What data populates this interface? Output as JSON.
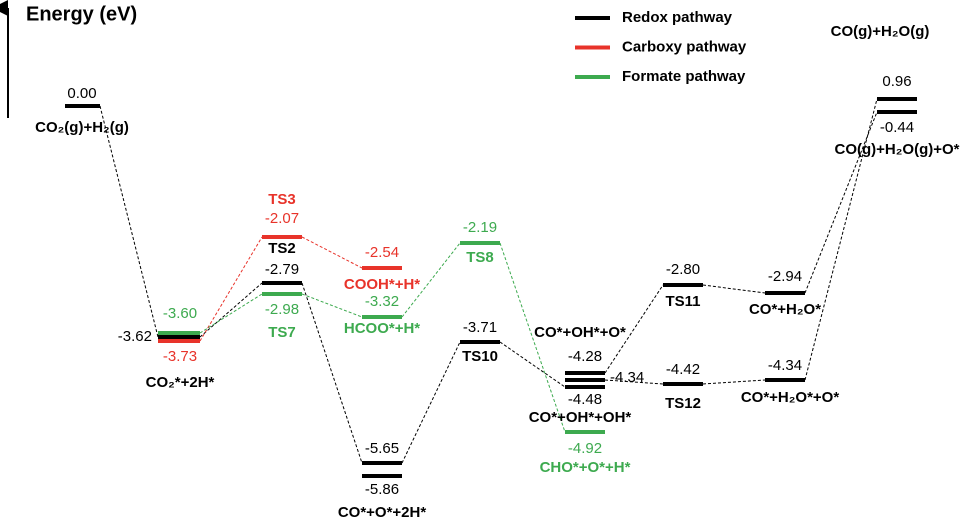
{
  "axis_label": "Energy (eV)",
  "legend": [
    {
      "name": "Redox pathway",
      "color": "#000000"
    },
    {
      "name": "Carboxy pathway",
      "color": "#e8332a"
    },
    {
      "name": "Formate pathway",
      "color": "#3daa4f"
    }
  ],
  "levels": [
    {
      "energy": "0.00",
      "color": "#000000"
    },
    {
      "energy": "-3.60",
      "color": "#3daa4f"
    },
    {
      "energy": "-3.62",
      "color": "#000000"
    },
    {
      "energy": "-3.73",
      "color": "#e8332a"
    },
    {
      "energy": "-2.07",
      "color": "#e8332a"
    },
    {
      "energy": "-2.79",
      "color": "#000000"
    },
    {
      "energy": "-2.98",
      "color": "#3daa4f"
    },
    {
      "energy": "-2.54",
      "color": "#e8332a"
    },
    {
      "energy": "-3.32",
      "color": "#3daa4f"
    },
    {
      "energy": "-5.65",
      "color": "#000000"
    },
    {
      "energy": "-5.86",
      "color": "#000000"
    },
    {
      "energy": "-2.19",
      "color": "#3daa4f"
    },
    {
      "energy": "-3.71",
      "color": "#000000"
    },
    {
      "energy": "-4.28",
      "color": "#000000"
    },
    {
      "energy": "-4.34",
      "color": "#000000"
    },
    {
      "energy": "-4.48",
      "color": "#000000"
    },
    {
      "energy": "-4.92",
      "color": "#3daa4f"
    },
    {
      "energy": "-2.80",
      "color": "#000000"
    },
    {
      "energy": "-4.42",
      "color": "#000000"
    },
    {
      "energy": "-2.94",
      "color": "#000000"
    },
    {
      "energy": "-4.34",
      "color": "#000000"
    },
    {
      "energy": "0.96",
      "color": "#000000"
    },
    {
      "energy": "-0.44",
      "color": "#000000"
    }
  ],
  "states": [
    {
      "label": "CO₂(g)+H₂(g)",
      "color": "#000000"
    },
    {
      "label": "CO₂*+2H*",
      "color": "#000000"
    },
    {
      "label": "TS3",
      "color": "#e8332a"
    },
    {
      "label": "TS2",
      "color": "#000000"
    },
    {
      "label": "TS7",
      "color": "#3daa4f"
    },
    {
      "label": "COOH*+H*",
      "color": "#e8332a"
    },
    {
      "label": "HCOO*+H*",
      "color": "#3daa4f"
    },
    {
      "label": "CO*+O*+2H*",
      "color": "#000000"
    },
    {
      "label": "TS8",
      "color": "#3daa4f"
    },
    {
      "label": "TS10",
      "color": "#000000"
    },
    {
      "label": "CO*+OH*+O*",
      "color": "#000000"
    },
    {
      "label": "CO*+OH*+OH*",
      "color": "#000000"
    },
    {
      "label": "CHO*+O*+H*",
      "color": "#3daa4f"
    },
    {
      "label": "TS11",
      "color": "#000000"
    },
    {
      "label": "TS12",
      "color": "#000000"
    },
    {
      "label": "CO*+H₂O*",
      "color": "#000000"
    },
    {
      "label": "CO*+H₂O*+O*",
      "color": "#000000"
    },
    {
      "label": "CO(g)+H₂O(g)",
      "color": "#000000"
    },
    {
      "label": "CO(g)+H₂O(g)+O*",
      "color": "#000000"
    }
  ]
}
